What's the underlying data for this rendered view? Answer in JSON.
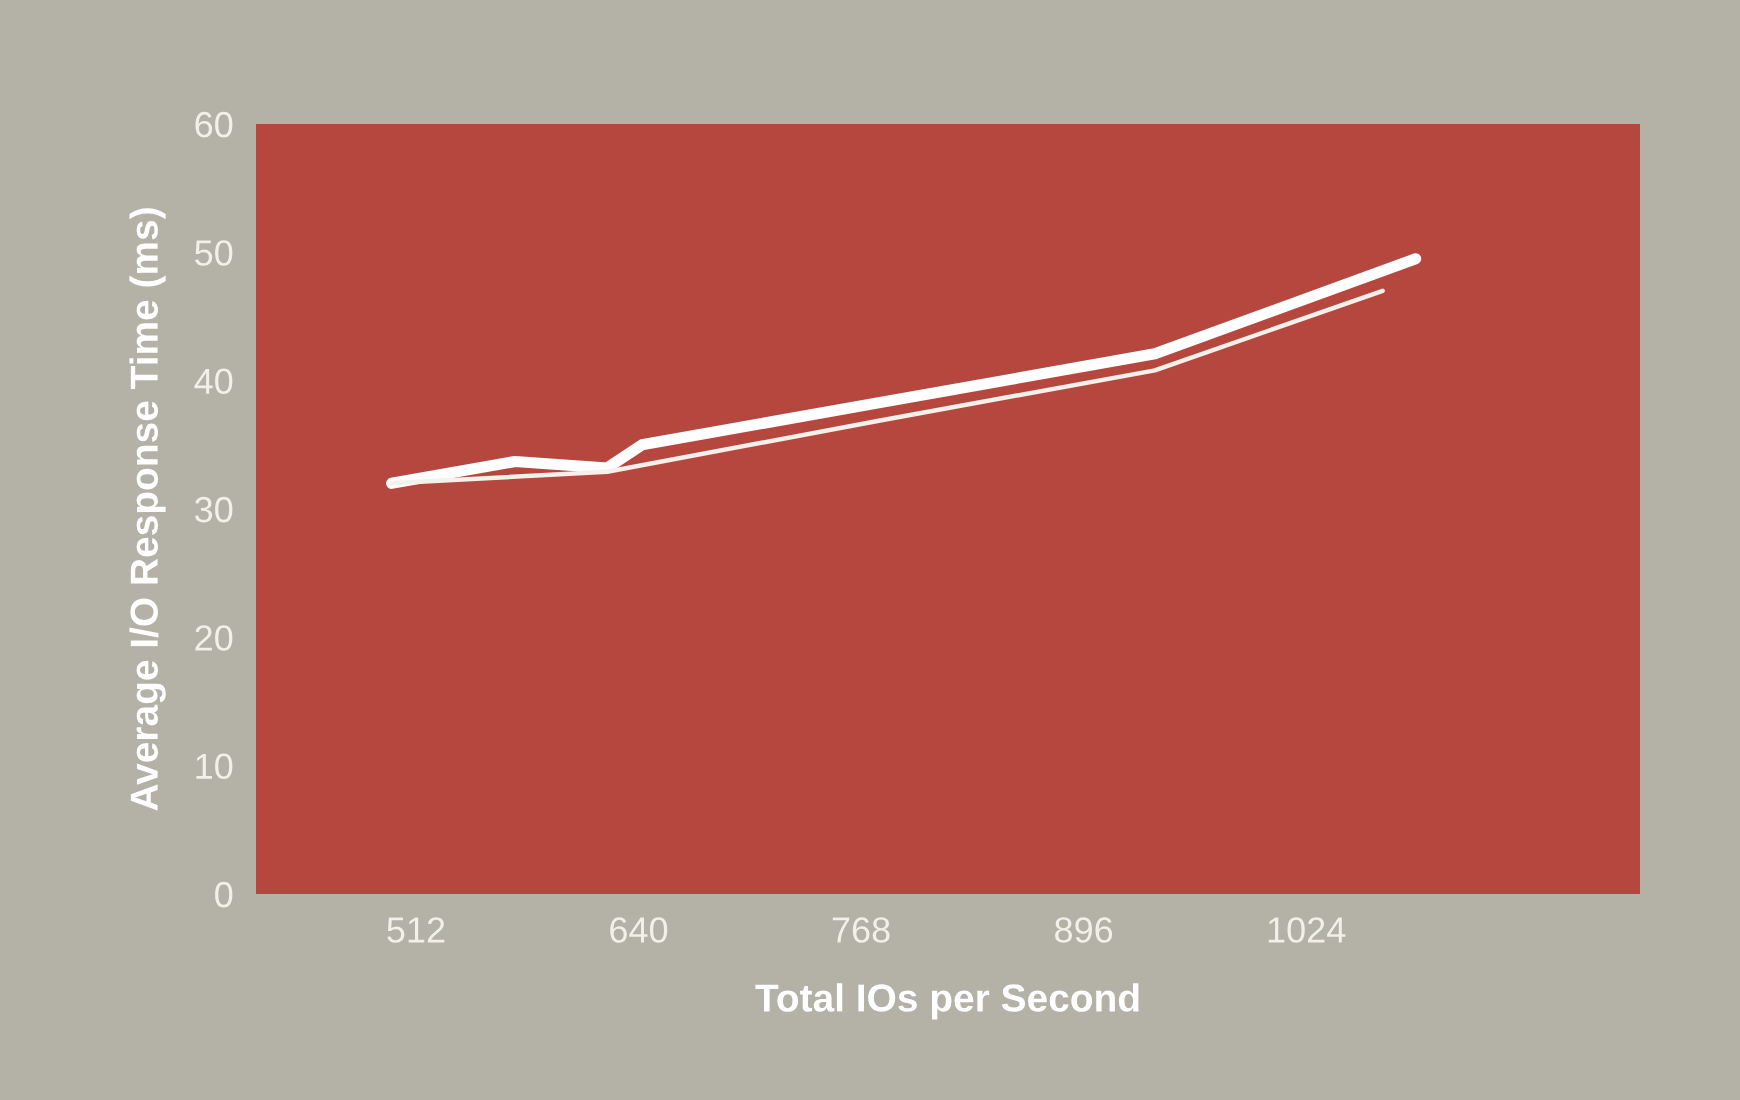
{
  "chart_data": {
    "type": "line",
    "xlabel": "Total IOs per Second",
    "ylabel": "Average I/O Response Time (ms)",
    "xlim": [
      420,
      1216
    ],
    "xticks": [
      512,
      640,
      768,
      896,
      1024
    ],
    "ylim": [
      0,
      60
    ],
    "yticks": [
      0,
      10,
      20,
      30,
      40,
      50,
      60
    ],
    "grid": false,
    "marker": "none",
    "line_style": "solid",
    "series": [
      {
        "color": "#ffffff",
        "x": [
          498,
          569,
          622,
          642,
          779,
          937,
          1087
        ],
        "values": [
          32.0,
          33.7,
          33.2,
          35.0,
          38.3,
          42.1,
          49.5
        ]
      },
      {
        "color": "#f4f0ea",
        "x": [
          498,
          622,
          779,
          937,
          1068
        ],
        "values": [
          32.0,
          32.9,
          36.9,
          40.8,
          47.0
        ]
      }
    ]
  }
}
